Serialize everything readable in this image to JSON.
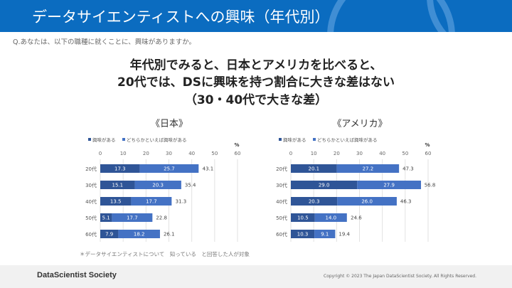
{
  "header": {
    "title": "データサイエンティストへの興味（年代別）"
  },
  "question": "Q.あなたは、以下の職種に就くことに、興味がありますか。",
  "headline": [
    "年代別でみると、日本とアメリカを比べると、",
    "20代では、DSに興味を持つ割合に大きな差はない",
    "（30・40代で大きな差）"
  ],
  "colors": {
    "header": "#0b6cc0",
    "series_dark": "#2f5597",
    "series_light": "#4472c4"
  },
  "chart_data": [
    {
      "type": "bar",
      "orientation": "horizontal",
      "stacked": true,
      "title": "《日本》",
      "unit": "%",
      "categories": [
        "20代",
        "30代",
        "40代",
        "50代",
        "60代"
      ],
      "series": [
        {
          "name": "興味がある",
          "values": [
            17.3,
            15.1,
            13.5,
            5.1,
            7.9
          ]
        },
        {
          "name": "どちらかといえば興味がある",
          "values": [
            25.7,
            20.3,
            17.7,
            17.7,
            18.2
          ]
        }
      ],
      "totals": [
        43.1,
        35.4,
        31.3,
        22.8,
        26.1
      ],
      "xlim": [
        0,
        60
      ],
      "xticks": [
        0,
        10,
        20,
        30,
        40,
        50,
        60
      ],
      "grid": true,
      "legend": "top-left"
    },
    {
      "type": "bar",
      "orientation": "horizontal",
      "stacked": true,
      "title": "《アメリカ》",
      "unit": "%",
      "categories": [
        "20代",
        "30代",
        "40代",
        "50代",
        "60代"
      ],
      "series": [
        {
          "name": "興味がある",
          "values": [
            20.1,
            29.0,
            20.3,
            10.5,
            10.3
          ]
        },
        {
          "name": "どちらかといえば興味がある",
          "values": [
            27.2,
            27.9,
            26.0,
            14.0,
            9.1
          ]
        }
      ],
      "totals": [
        47.3,
        56.8,
        46.3,
        24.6,
        19.4
      ],
      "xlim": [
        0,
        60
      ],
      "xticks": [
        0,
        10,
        20,
        30,
        40,
        50,
        60
      ],
      "grid": true,
      "legend": "top-left"
    }
  ],
  "footnote": "＊データサイエンティストについて　知っている　と回答した人が対象",
  "footer": {
    "brand": "DataScientist Society",
    "copyright": "Copyright © 2023  The Japan DataScientist Society. All Rights Reserved."
  }
}
